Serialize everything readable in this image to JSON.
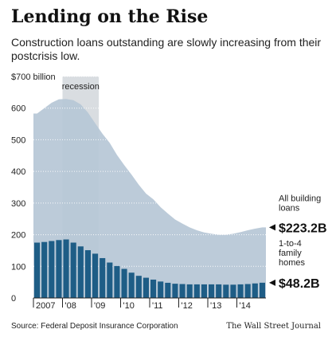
{
  "title": "Lending on the Rise",
  "subtitle": "Construction loans outstanding are slowly increasing from their postcrisis low.",
  "source": "Source: Federal Deposit Insurance Corporation",
  "publisher": "The Wall Street Journal",
  "colors": {
    "all_building_loans": "#b6c7d6",
    "family_homes": "#1e5d86",
    "recession_shade": "#d9dde1"
  },
  "chart_data": {
    "type": "area",
    "title": "Lending on the Rise",
    "ylim": [
      0,
      700
    ],
    "y_ticks": [
      "$700 billion",
      "600",
      "500",
      "400",
      "300",
      "200",
      "100",
      "0"
    ],
    "y_tick_values": [
      700,
      600,
      500,
      400,
      300,
      200,
      100,
      0
    ],
    "x_tick_labels": [
      "2007",
      "'08",
      "'09",
      "'10",
      "'11",
      "'12",
      "'13",
      "'14"
    ],
    "recession": {
      "label": "recession",
      "start_quarter": 4,
      "end_quarter": 9
    },
    "series": [
      {
        "name": "All building loans",
        "values": [
          583,
          600,
          617,
          628,
          629,
          625,
          612,
          586,
          552,
          519,
          490,
          452,
          420,
          390,
          358,
          330,
          312,
          287,
          267,
          248,
          235,
          223,
          214,
          207,
          203,
          200,
          200,
          203,
          208,
          214,
          219,
          223.2
        ]
      },
      {
        "name": "1-to-4 family homes",
        "values": [
          175,
          177,
          180,
          183,
          185,
          175,
          163,
          151,
          140,
          126,
          112,
          101,
          92,
          80,
          70,
          64,
          58,
          52,
          48,
          45,
          44,
          43,
          43,
          43,
          43,
          43,
          42,
          42,
          43,
          44,
          46,
          48.2
        ]
      }
    ],
    "annotations": [
      {
        "label_lines": [
          "All building",
          "loans"
        ],
        "value": "$223.2B"
      },
      {
        "label_lines": [
          "1-to-4",
          "family",
          "homes"
        ],
        "value": "$48.2B"
      }
    ]
  }
}
